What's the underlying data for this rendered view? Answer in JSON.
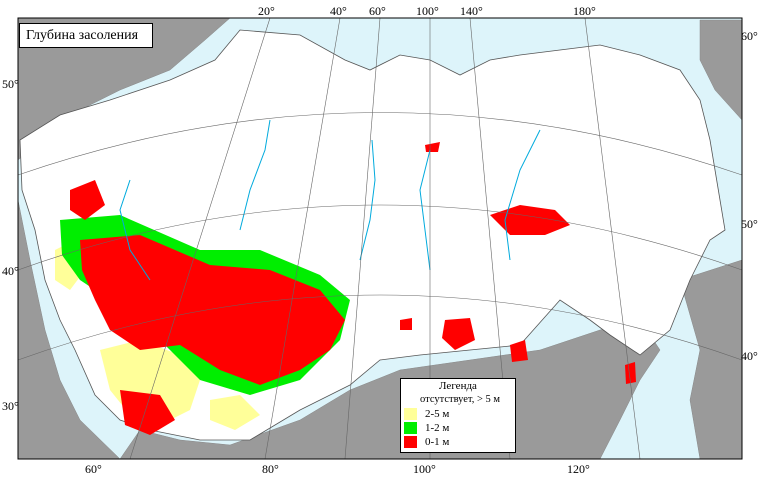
{
  "title": "Глубина засоления",
  "legend": {
    "title": "Легенда",
    "items": [
      {
        "label": "отсутствует, > 5 м",
        "color": "#ffffff"
      },
      {
        "label": "2-5 м",
        "color": "#ffff99"
      },
      {
        "label": "1-2 м",
        "color": "#00ee00"
      },
      {
        "label": "0-1 м",
        "color": "#ff0000"
      }
    ]
  },
  "top_ticks": [
    "20°",
    "40°",
    "60°",
    "100°",
    "140°",
    "180°"
  ],
  "bottom_ticks": [
    "60°",
    "80°",
    "100°",
    "120°"
  ],
  "left_ticks": [
    "50°",
    "40°",
    "30°"
  ],
  "right_ticks": [
    "60°",
    "50°",
    "40°"
  ],
  "colors": {
    "land_ussr": "#ffffff",
    "land_other": "#9a9a9a",
    "water": "#ddf4fa",
    "rivers": "#00aadd",
    "graticule": "#666666"
  }
}
